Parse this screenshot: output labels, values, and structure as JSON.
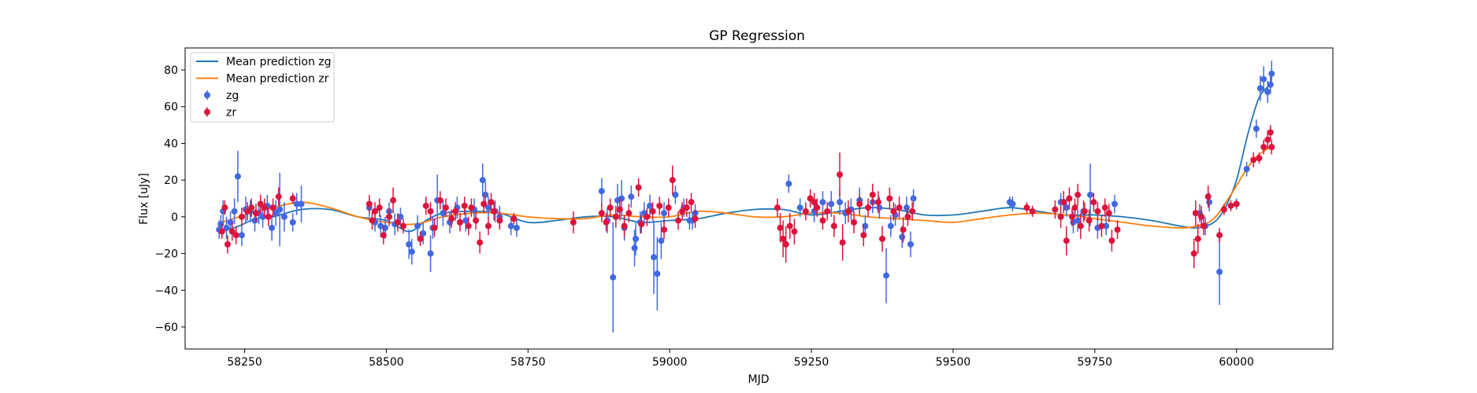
{
  "chart_data": {
    "type": "scatter",
    "title": "GP Regression",
    "xlabel": "MJD",
    "ylabel": "Flux [uJy]",
    "xlim": [
      58145,
      60170
    ],
    "ylim": [
      -72,
      92
    ],
    "xticks": [
      58250,
      58500,
      58750,
      59000,
      59250,
      59500,
      59750,
      60000
    ],
    "yticks": [
      -60,
      -40,
      -20,
      0,
      20,
      40,
      60,
      80
    ],
    "grid": false,
    "legend_position": "top-left",
    "legend": [
      {
        "label": "Mean prediction zg",
        "kind": "line",
        "color": "#1f77b4"
      },
      {
        "label": "Mean prediction zr",
        "kind": "line",
        "color": "#ff7f0e"
      },
      {
        "label": "zg",
        "kind": "errorbar",
        "color": "#4169e1"
      },
      {
        "label": "zr",
        "kind": "errorbar",
        "color": "#dc143c"
      }
    ],
    "series": [
      {
        "name": "Mean prediction zg",
        "kind": "line",
        "color": "#1f77b4",
        "x": [
          58210,
          58240,
          58270,
          58300,
          58350,
          58400,
          58450,
          58500,
          58540,
          58570,
          58600,
          58650,
          58700,
          58750,
          58800,
          58850,
          58900,
          58950,
          59000,
          59050,
          59100,
          59150,
          59200,
          59250,
          59300,
          59350,
          59400,
          59450,
          59500,
          59550,
          59600,
          59650,
          59700,
          59750,
          59800,
          59850,
          59900,
          59930,
          59960,
          59980,
          60000,
          60020,
          60040,
          60060
        ],
        "y": [
          -8,
          -5,
          -1,
          0,
          4,
          4,
          0,
          -2,
          -8,
          -2,
          2,
          3,
          2,
          -3,
          -2,
          0,
          0,
          -3,
          -2,
          -1,
          2,
          4,
          4,
          1,
          3,
          5,
          4,
          1,
          1,
          3,
          5,
          3,
          1,
          1,
          0,
          -2,
          -5,
          -6,
          -3,
          5,
          20,
          45,
          65,
          72
        ]
      },
      {
        "name": "Mean prediction zr",
        "kind": "line",
        "color": "#ff7f0e",
        "x": [
          58210,
          58240,
          58270,
          58300,
          58350,
          58400,
          58450,
          58500,
          58550,
          58600,
          58650,
          58700,
          58750,
          58800,
          58850,
          58900,
          58950,
          59000,
          59050,
          59100,
          59150,
          59200,
          59250,
          59300,
          59350,
          59400,
          59450,
          59500,
          59550,
          59600,
          59650,
          59700,
          59750,
          59800,
          59850,
          59900,
          59930,
          59960,
          59990,
          60020,
          60040,
          60060
        ],
        "y": [
          -3,
          0,
          3,
          5,
          8,
          5,
          0,
          -3,
          -4,
          0,
          2,
          2,
          0,
          -1,
          -1,
          1,
          0,
          0,
          3,
          2,
          0,
          0,
          2,
          2,
          0,
          -1,
          -2,
          -3,
          -1,
          1,
          2,
          1,
          -1,
          -3,
          -5,
          -6,
          -5,
          -1,
          12,
          27,
          34,
          38
        ]
      },
      {
        "name": "zg",
        "kind": "errorbar",
        "color": "#4169e1",
        "x": [
          58205,
          58208,
          58212,
          58218,
          58225,
          58232,
          58238,
          58245,
          58252,
          58260,
          58268,
          58275,
          58282,
          58290,
          58298,
          58305,
          58312,
          58320,
          58335,
          58342,
          58350,
          58470,
          58480,
          58490,
          58498,
          58505,
          58515,
          58525,
          58540,
          58545,
          58555,
          58565,
          58578,
          58582,
          58590,
          58600,
          58612,
          58625,
          58640,
          58655,
          58670,
          58675,
          58680,
          58692,
          58700,
          58720,
          58730,
          58880,
          58890,
          58900,
          58908,
          58915,
          58920,
          58932,
          58938,
          58940,
          58948,
          58955,
          58965,
          58972,
          58978,
          58985,
          58990,
          59010,
          59025,
          59035,
          59040,
          59045,
          59210,
          59230,
          59255,
          59270,
          59285,
          59300,
          59310,
          59320,
          59335,
          59345,
          59358,
          59370,
          59382,
          59390,
          59398,
          59410,
          59418,
          59425,
          59430,
          59600,
          59605,
          59690,
          59700,
          59712,
          59720,
          59730,
          59742,
          59755,
          59770,
          59785,
          59935,
          59945,
          59952,
          59970,
          60000,
          60018,
          60035,
          60042,
          60048,
          60055,
          60060,
          60062
        ],
        "y": [
          -7,
          -4,
          3,
          -6,
          -3,
          3,
          22,
          -10,
          4,
          3,
          -2,
          2,
          0,
          6,
          -6,
          2,
          4,
          0,
          -3,
          7,
          7,
          5,
          -3,
          -5,
          -6,
          3,
          -4,
          0,
          -15,
          -19,
          -5,
          -9,
          -20,
          -6,
          9,
          2,
          -3,
          5,
          -2,
          4,
          20,
          12,
          5,
          3,
          0,
          -5,
          -6,
          14,
          -2,
          -33,
          9,
          10,
          -6,
          11,
          -17,
          -12,
          -3,
          2,
          6,
          -22,
          -31,
          -13,
          2,
          12,
          5,
          -2,
          -2,
          2,
          18,
          5,
          3,
          8,
          7,
          8,
          2,
          4,
          9,
          -5,
          8,
          5,
          -32,
          -5,
          1,
          -11,
          5,
          -15,
          10,
          8,
          7,
          8,
          5,
          -3,
          -2,
          3,
          12,
          -6,
          -5,
          7,
          2,
          -5,
          8,
          -30,
          7,
          26,
          48,
          70,
          75,
          68,
          72,
          78
        ],
        "err": [
          5,
          5,
          6,
          6,
          6,
          7,
          14,
          6,
          7,
          6,
          6,
          6,
          6,
          6,
          7,
          7,
          20,
          8,
          5,
          6,
          10,
          5,
          5,
          6,
          6,
          5,
          6,
          5,
          8,
          7,
          6,
          6,
          10,
          6,
          14,
          7,
          6,
          6,
          6,
          6,
          9,
          7,
          6,
          6,
          6,
          5,
          5,
          7,
          7,
          30,
          9,
          10,
          7,
          6,
          10,
          9,
          6,
          6,
          6,
          20,
          20,
          10,
          6,
          5,
          5,
          5,
          5,
          5,
          5,
          5,
          6,
          6,
          7,
          7,
          6,
          6,
          7,
          6,
          6,
          6,
          15,
          6,
          6,
          6,
          6,
          7,
          5,
          3,
          4,
          5,
          5,
          6,
          6,
          6,
          17,
          6,
          5,
          5,
          5,
          5,
          5,
          18,
          3,
          4,
          5,
          7,
          7,
          6,
          5,
          7
        ]
      },
      {
        "name": "zr",
        "kind": "errorbar",
        "color": "#dc143c",
        "x": [
          58210,
          58215,
          58220,
          58228,
          58235,
          58245,
          58255,
          58262,
          58270,
          58278,
          58285,
          58292,
          58300,
          58310,
          58335,
          58470,
          58475,
          58480,
          58488,
          58495,
          58505,
          58512,
          58520,
          58530,
          58560,
          58570,
          58578,
          58585,
          58595,
          58605,
          58615,
          58622,
          58630,
          58638,
          58645,
          58650,
          58658,
          58665,
          58672,
          58680,
          58685,
          58690,
          58700,
          58725,
          58830,
          58880,
          58888,
          58895,
          58905,
          58912,
          58920,
          58928,
          58945,
          58950,
          58960,
          58970,
          58982,
          58990,
          58998,
          59005,
          59015,
          59022,
          59030,
          59038,
          59045,
          59190,
          59195,
          59200,
          59205,
          59212,
          59220,
          59240,
          59248,
          59255,
          59260,
          59270,
          59278,
          59290,
          59300,
          59305,
          59315,
          59325,
          59335,
          59342,
          59350,
          59358,
          59368,
          59375,
          59388,
          59395,
          59405,
          59412,
          59420,
          59428,
          59630,
          59640,
          59680,
          59690,
          59695,
          59700,
          59705,
          59710,
          59715,
          59720,
          59725,
          59732,
          59740,
          59748,
          59755,
          59762,
          59768,
          59775,
          59780,
          59790,
          59925,
          59928,
          59932,
          59938,
          59942,
          59950,
          59970,
          59978,
          59990,
          60000,
          60030,
          60040,
          60048,
          60055,
          60060,
          60062
        ],
        "y": [
          -8,
          5,
          -15,
          -8,
          -10,
          0,
          3,
          5,
          2,
          7,
          5,
          0,
          5,
          11,
          10,
          7,
          -2,
          3,
          5,
          -10,
          0,
          9,
          -3,
          -5,
          -12,
          6,
          3,
          -6,
          9,
          5,
          -1,
          3,
          -3,
          6,
          -5,
          5,
          -2,
          -14,
          7,
          -5,
          8,
          3,
          -2,
          -1,
          -3,
          2,
          -3,
          5,
          0,
          4,
          -5,
          2,
          16,
          -4,
          0,
          3,
          6,
          -7,
          5,
          20,
          -2,
          3,
          5,
          8,
          -1,
          5,
          -6,
          -12,
          -15,
          -5,
          -8,
          3,
          10,
          8,
          5,
          -2,
          3,
          -5,
          23,
          -14,
          3,
          -3,
          7,
          -10,
          5,
          12,
          8,
          -12,
          10,
          3,
          5,
          -7,
          0,
          3,
          5,
          3,
          4,
          0,
          8,
          -13,
          10,
          0,
          5,
          12,
          -5,
          3,
          -2,
          8,
          3,
          -5,
          5,
          2,
          -13,
          -7,
          -20,
          2,
          -12,
          0,
          -5,
          11,
          -10,
          4,
          6,
          7,
          31,
          32,
          38,
          42,
          46,
          38
        ],
        "err": [
          4,
          4,
          5,
          5,
          5,
          5,
          5,
          5,
          5,
          5,
          5,
          5,
          5,
          5,
          3,
          5,
          5,
          5,
          5,
          5,
          5,
          7,
          5,
          4,
          4,
          5,
          5,
          5,
          5,
          5,
          5,
          5,
          5,
          5,
          5,
          5,
          5,
          6,
          5,
          5,
          5,
          5,
          5,
          3,
          6,
          5,
          5,
          5,
          6,
          6,
          6,
          5,
          5,
          5,
          5,
          5,
          5,
          5,
          5,
          8,
          5,
          5,
          5,
          5,
          5,
          5,
          8,
          10,
          10,
          7,
          7,
          5,
          5,
          5,
          5,
          5,
          5,
          6,
          12,
          10,
          6,
          6,
          6,
          6,
          5,
          6,
          6,
          7,
          6,
          5,
          6,
          7,
          5,
          5,
          3,
          3,
          5,
          6,
          6,
          8,
          6,
          5,
          5,
          6,
          7,
          5,
          6,
          5,
          5,
          6,
          5,
          5,
          6,
          5,
          8,
          7,
          8,
          6,
          5,
          6,
          4,
          3,
          3,
          2,
          4,
          3,
          4,
          5,
          4,
          4
        ]
      }
    ]
  }
}
